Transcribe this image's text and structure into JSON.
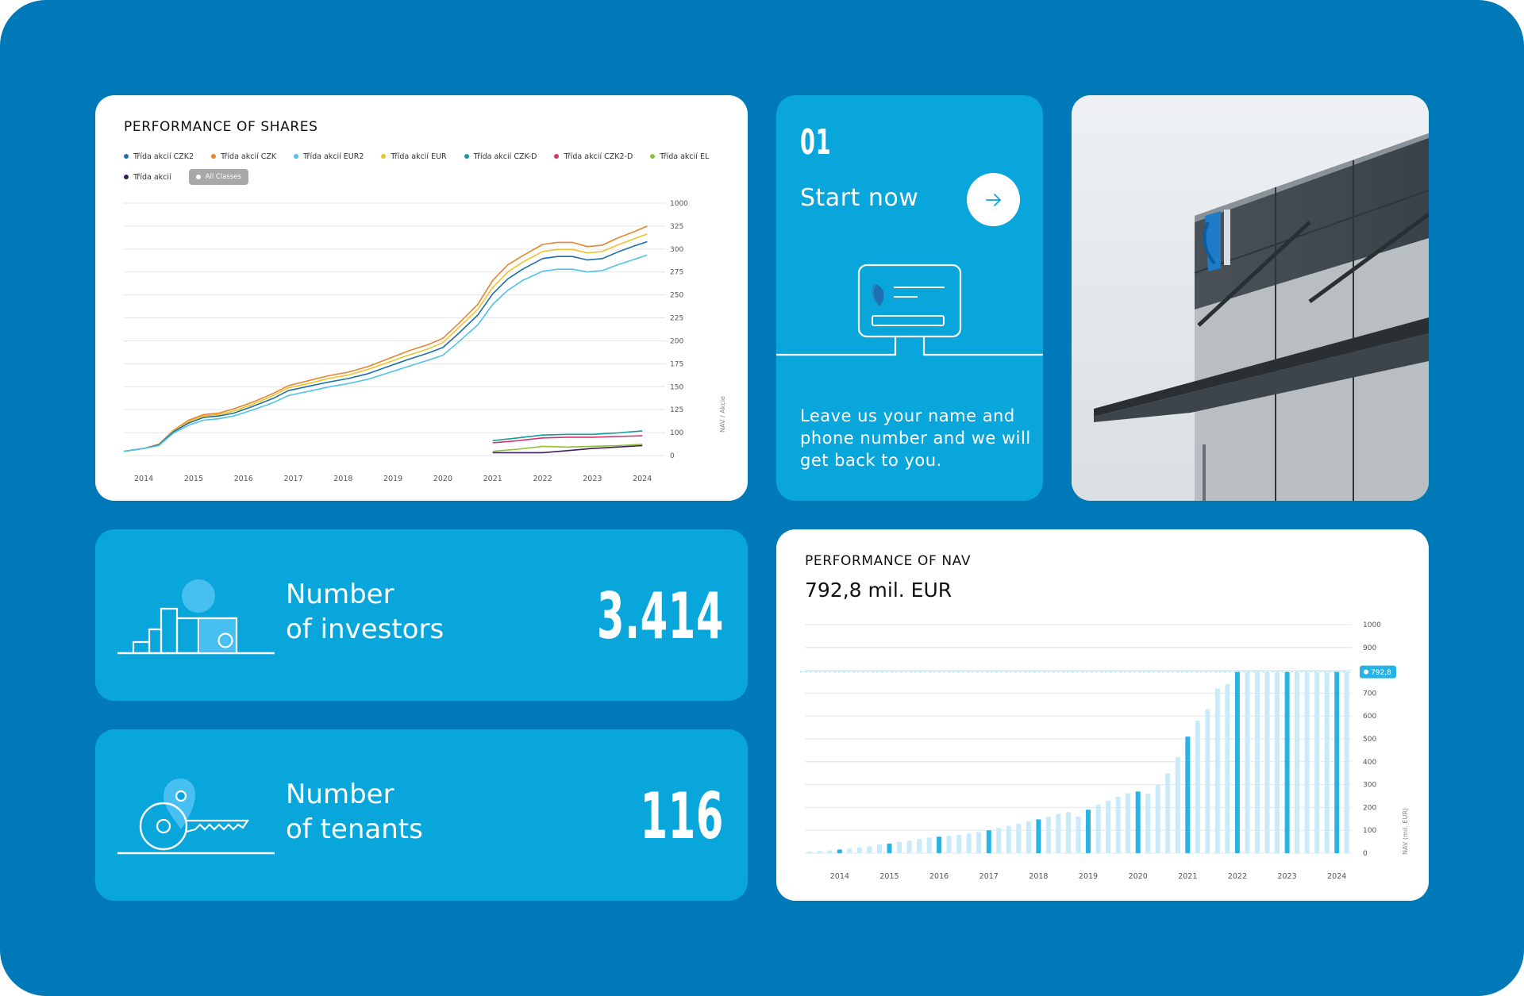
{
  "shares_card": {
    "title": "PERFORMANCE OF SHARES",
    "legend": [
      {
        "label": "Třída akcií CZK2",
        "color": "#1b6fa8"
      },
      {
        "label": "Třída akcií CZK",
        "color": "#e7852e"
      },
      {
        "label": "Třída akcií EUR2",
        "color": "#4fc2ea"
      },
      {
        "label": "Třída akcií EUR",
        "color": "#f2c22e"
      },
      {
        "label": "Třída akcií CZK-D",
        "color": "#169a9a"
      },
      {
        "label": "Třída akcií CZK2-D",
        "color": "#d6336c"
      },
      {
        "label": "Třída akcií EL",
        "color": "#8fbf3a"
      },
      {
        "label": "Třída akcií",
        "color": "#3c1d5e"
      }
    ],
    "all_classes_label": "All Classes"
  },
  "start_card": {
    "step": "01",
    "label": "Start now",
    "description": "Leave us your name and phone number and we will get back to you."
  },
  "investors_card": {
    "label_line1": "Number",
    "label_line2": "of investors",
    "value": "3.414"
  },
  "tenants_card": {
    "label_line1": "Number",
    "label_line2": "of tenants",
    "value": "116"
  },
  "nav_card": {
    "title": "PERFORMANCE OF NAV",
    "value": "792,8 mil. EUR"
  },
  "chart_data": [
    {
      "type": "line",
      "title": "PERFORMANCE OF SHARES",
      "ylabel": "NAV / Akcie",
      "x_ticks": [
        "2014",
        "2015",
        "2016",
        "2017",
        "2018",
        "2019",
        "2020",
        "2021",
        "2022",
        "2023",
        "2024"
      ],
      "y_ticks": [
        "1000",
        "325",
        "300",
        "275",
        "250",
        "225",
        "200",
        "175",
        "150",
        "125",
        "100",
        "0"
      ],
      "xlim": [
        2013.6,
        2024.3
      ],
      "series": [
        {
          "name": "Třída akcií CZK",
          "color": "#e7852e",
          "x": [
            2013.6,
            2014.0,
            2014.3,
            2014.6,
            2014.9,
            2015.2,
            2015.5,
            2015.8,
            2016.2,
            2016.6,
            2016.9,
            2017.3,
            2017.7,
            2018.1,
            2018.5,
            2018.9,
            2019.3,
            2019.7,
            2020.0,
            2020.3,
            2020.7,
            2021.0,
            2021.3,
            2021.6,
            2022.0,
            2022.3,
            2022.6,
            2022.9,
            2023.2,
            2023.5,
            2023.8,
            2024.1
          ],
          "y": [
            6,
            10,
            16,
            36,
            50,
            58,
            60,
            66,
            76,
            88,
            99,
            106,
            113,
            118,
            126,
            137,
            148,
            157,
            166,
            186,
            214,
            248,
            270,
            283,
            299,
            302,
            302,
            296,
            298,
            308,
            316,
            325
          ]
        },
        {
          "name": "Třída akcií EUR",
          "color": "#f2c22e",
          "x": [
            2013.6,
            2014.0,
            2014.3,
            2014.6,
            2014.9,
            2015.2,
            2015.5,
            2015.8,
            2016.2,
            2016.6,
            2016.9,
            2017.3,
            2017.7,
            2018.1,
            2018.5,
            2018.9,
            2019.3,
            2019.7,
            2020.0,
            2020.3,
            2020.7,
            2021.0,
            2021.3,
            2021.6,
            2022.0,
            2022.3,
            2022.6,
            2022.9,
            2023.2,
            2023.5,
            2023.8,
            2024.1
          ],
          "y": [
            6,
            10,
            15,
            35,
            48,
            56,
            58,
            63,
            73,
            85,
            96,
            102,
            109,
            114,
            122,
            132,
            142,
            151,
            160,
            180,
            207,
            238,
            260,
            274,
            289,
            292,
            292,
            287,
            289,
            298,
            306,
            314
          ]
        },
        {
          "name": "Třída akcií CZK2",
          "color": "#1b6fa8",
          "x": [
            2013.6,
            2014.0,
            2014.3,
            2014.6,
            2014.9,
            2015.2,
            2015.5,
            2015.8,
            2016.2,
            2016.6,
            2016.9,
            2017.3,
            2017.7,
            2018.1,
            2018.5,
            2018.9,
            2019.3,
            2019.7,
            2020.0,
            2020.3,
            2020.7,
            2021.0,
            2021.3,
            2021.6,
            2022.0,
            2022.3,
            2022.6,
            2022.9,
            2023.2,
            2023.5,
            2023.8,
            2024.1
          ],
          "y": [
            6,
            10,
            15,
            34,
            46,
            54,
            56,
            60,
            70,
            81,
            92,
            98,
            104,
            109,
            116,
            126,
            136,
            145,
            153,
            172,
            199,
            229,
            250,
            264,
            279,
            282,
            282,
            277,
            279,
            288,
            296,
            303
          ]
        },
        {
          "name": "Třída akcií EUR2",
          "color": "#4fc2ea",
          "x": [
            2013.6,
            2014.0,
            2014.3,
            2014.6,
            2014.9,
            2015.2,
            2015.5,
            2015.8,
            2016.2,
            2016.6,
            2016.9,
            2017.3,
            2017.7,
            2018.1,
            2018.5,
            2018.9,
            2019.3,
            2019.7,
            2020.0,
            2020.3,
            2020.7,
            2021.0,
            2021.3,
            2021.6,
            2022.0,
            2022.3,
            2022.6,
            2022.9,
            2023.2,
            2023.5,
            2023.8,
            2024.1
          ],
          "y": [
            6,
            10,
            14,
            32,
            43,
            50,
            52,
            56,
            65,
            75,
            85,
            91,
            97,
            102,
            108,
            117,
            126,
            135,
            142,
            160,
            185,
            214,
            234,
            248,
            261,
            264,
            264,
            260,
            262,
            270,
            277,
            284
          ]
        },
        {
          "name": "Třída akcií CZK-D",
          "color": "#169a9a",
          "x": [
            2021.0,
            2021.5,
            2022.0,
            2022.5,
            2023.0,
            2023.5,
            2024.0
          ],
          "y": [
            21,
            25,
            29,
            30,
            30,
            32,
            35
          ]
        },
        {
          "name": "Třída akcií CZK2-D",
          "color": "#d6336c",
          "x": [
            2021.0,
            2021.5,
            2022.0,
            2022.5,
            2023.0,
            2023.5,
            2024.0
          ],
          "y": [
            18,
            21,
            25,
            26,
            26,
            27,
            28
          ]
        },
        {
          "name": "Třída akcií EL",
          "color": "#8fbf3a",
          "x": [
            2021.0,
            2021.5,
            2022.0,
            2022.5,
            2023.0,
            2023.5,
            2024.0
          ],
          "y": [
            6,
            9,
            13,
            12,
            13,
            14,
            16
          ]
        },
        {
          "name": "Třída akcií",
          "color": "#3c1d5e",
          "x": [
            2021.0,
            2021.5,
            2022.0,
            2022.5,
            2023.0,
            2023.5,
            2024.0
          ],
          "y": [
            4,
            4,
            4,
            7,
            10,
            12,
            14
          ]
        }
      ]
    },
    {
      "type": "bar",
      "title": "PERFORMANCE OF NAV",
      "ylabel": "NAV (mil. EUR)",
      "x_ticks": [
        "2014",
        "2015",
        "2016",
        "2017",
        "2018",
        "2019",
        "2020",
        "2021",
        "2022",
        "2023",
        "2024"
      ],
      "ylim": [
        0,
        1000
      ],
      "y_ticks": [
        0,
        100,
        200,
        300,
        400,
        500,
        600,
        700,
        800,
        900,
        1000
      ],
      "highlight_value": "792,8",
      "values": [
        6,
        10,
        12,
        16,
        20,
        25,
        30,
        38,
        42,
        50,
        55,
        62,
        68,
        72,
        76,
        80,
        86,
        92,
        100,
        110,
        120,
        130,
        140,
        148,
        160,
        172,
        180,
        160,
        190,
        212,
        230,
        248,
        262,
        270,
        260,
        300,
        350,
        420,
        510,
        580,
        630,
        720,
        740,
        793,
        793,
        793,
        793,
        793,
        793,
        793,
        793,
        793,
        793,
        793,
        793
      ],
      "highlight_indices": [
        3,
        8,
        13,
        18,
        23,
        28,
        33,
        38,
        43,
        48,
        53
      ]
    }
  ]
}
